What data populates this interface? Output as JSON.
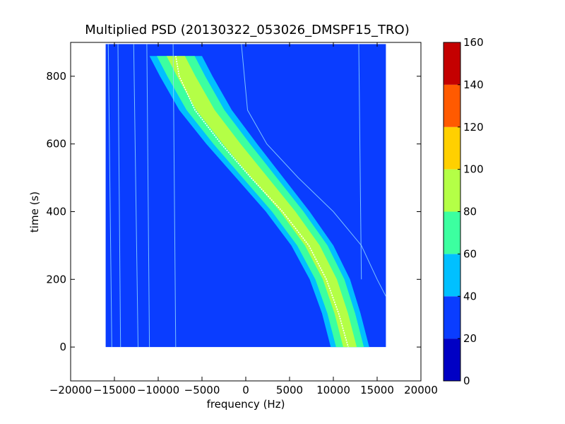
{
  "chart_data": {
    "type": "heatmap",
    "title": "Multiplied PSD (20130322_053026_DMSPF15_TRO)",
    "xlabel": "frequency (Hz)",
    "ylabel": "time (s)",
    "xlim": [
      -20000,
      20000
    ],
    "ylim": [
      -100,
      900
    ],
    "x_ticks": [
      -20000,
      -15000,
      -10000,
      -5000,
      0,
      5000,
      10000,
      15000,
      20000
    ],
    "x_tick_labels": [
      "−20000",
      "−15000",
      "−10000",
      "−5000",
      "0",
      "5000",
      "10000",
      "15000",
      "20000"
    ],
    "y_ticks": [
      0,
      200,
      400,
      600,
      800
    ],
    "y_tick_labels": [
      "0",
      "200",
      "400",
      "600",
      "800"
    ],
    "data_extent": {
      "x": [
        -16000,
        16000
      ],
      "y": [
        0,
        895
      ]
    },
    "background_level": 25,
    "colorbar": {
      "levels": [
        0,
        20,
        40,
        60,
        80,
        100,
        120,
        140,
        160
      ],
      "tick_labels": [
        "0",
        "20",
        "40",
        "60",
        "80",
        "100",
        "120",
        "140",
        "160"
      ],
      "colors": [
        "#0000c4",
        "#0a3dff",
        "#00c0ff",
        "#3cffa0",
        "#b4ff46",
        "#ffd000",
        "#ff5a00",
        "#c40000"
      ]
    },
    "doppler_band": {
      "description_points_time": [
        860,
        800,
        700,
        600,
        500,
        400,
        300,
        200,
        100,
        0
      ],
      "center_freq": [
        -8000,
        -6800,
        -4600,
        -1600,
        1600,
        4800,
        7600,
        9600,
        10900,
        11900
      ],
      "half_width": [
        3000,
        3000,
        3000,
        2900,
        2700,
        2500,
        2400,
        2300,
        2200,
        2200
      ],
      "level_outer": 50,
      "level_mid": 65,
      "level_core": 80
    },
    "white_trace": {
      "time": [
        860,
        800,
        700,
        600,
        500,
        400,
        300,
        200,
        100,
        0
      ],
      "freq": [
        -8000,
        -7600,
        -5800,
        -2800,
        600,
        4200,
        7200,
        9200,
        10600,
        11700
      ]
    },
    "faint_traces": [
      {
        "time": [
          895,
          0
        ],
        "freq": [
          -15700,
          -15300
        ]
      },
      {
        "time": [
          895,
          0
        ],
        "freq": [
          -14600,
          -14300
        ]
      },
      {
        "time": [
          895,
          0
        ],
        "freq": [
          -12800,
          -12300
        ]
      },
      {
        "time": [
          895,
          0
        ],
        "freq": [
          -11300,
          -11000
        ]
      },
      {
        "time": [
          895,
          0
        ],
        "freq": [
          -8300,
          -8000
        ]
      },
      {
        "time": [
          895,
          200
        ],
        "freq": [
          12900,
          13200
        ]
      },
      {
        "time": [
          895,
          700,
          600,
          500,
          400,
          300,
          200,
          150
        ],
        "freq": [
          -500,
          200,
          2400,
          6000,
          10000,
          13200,
          15000,
          16000
        ]
      }
    ]
  }
}
